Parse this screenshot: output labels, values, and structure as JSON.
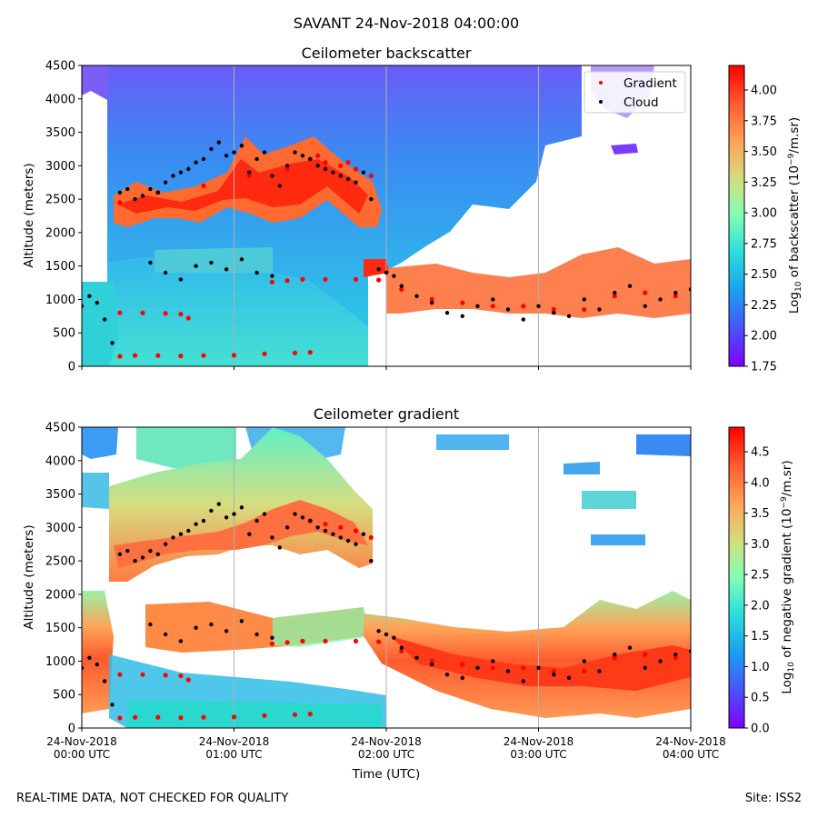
{
  "figure": {
    "title": "SAVANT 24-Nov-2018 04:00:00",
    "footer_left": "REAL-TIME DATA, NOT CHECKED FOR QUALITY",
    "footer_right": "Site: ISS2"
  },
  "colors": {
    "gradient_marker": "#ff0000",
    "cloud_marker": "#000000",
    "gridline": "#b0b0b0",
    "colormap": [
      "#8000ff",
      "#4a52fb",
      "#1a9ff0",
      "#2adcdc",
      "#80ffb4",
      "#d4dc7f",
      "#ffa256",
      "#ff5a2e",
      "#ff0000"
    ]
  },
  "chart_data": [
    {
      "type": "heatmap",
      "title": "Ceilometer backscatter",
      "xlabel": "",
      "ylabel": "Altitude (meters)",
      "xlim": [
        0,
        4
      ],
      "ylim": [
        0,
        4500
      ],
      "yticks": [
        0,
        500,
        1000,
        1500,
        2000,
        2500,
        3000,
        3500,
        4000,
        4500
      ],
      "xticks": [
        0,
        1,
        2,
        3,
        4
      ],
      "grid": "vertical",
      "colorbar": {
        "label": "Log10 of backscatter (10^-9/m.sr)",
        "range": [
          1.75,
          4.2
        ],
        "ticks": [
          "1.75",
          "2.00",
          "2.25",
          "2.50",
          "2.75",
          "3.00",
          "3.25",
          "3.50",
          "3.75",
          "4.00"
        ]
      },
      "legend": {
        "placement": "top-right",
        "entries": [
          {
            "label": "Gradient",
            "color": "#ff0000"
          },
          {
            "label": "Cloud",
            "color": "#000000"
          }
        ]
      },
      "series": [
        {
          "name": "Gradient",
          "x": [
            0.25,
            0.35,
            0.5,
            0.65,
            0.8,
            1.0,
            1.2,
            1.4,
            1.5,
            0.25,
            0.4,
            0.55,
            0.65,
            0.7,
            1.5,
            1.6,
            1.7,
            1.8,
            1.9,
            1.25,
            1.35,
            1.45,
            1.6,
            1.8,
            1.95,
            2.1,
            2.3,
            2.5,
            2.7,
            2.9,
            3.1,
            3.3,
            3.5,
            3.7,
            3.9,
            0.25,
            0.5,
            0.8,
            1.1,
            1.35,
            1.55,
            1.75
          ],
          "y": [
            150,
            160,
            160,
            155,
            160,
            165,
            185,
            200,
            210,
            800,
            800,
            790,
            780,
            720,
            3100,
            3050,
            3000,
            2950,
            2850,
            1260,
            1280,
            1300,
            1300,
            1300,
            1290,
            1150,
            1000,
            950,
            900,
            900,
            850,
            850,
            1050,
            1100,
            1050,
            2450,
            2600,
            2700,
            2850,
            2950,
            3150,
            3050
          ]
        },
        {
          "name": "Cloud",
          "x": [
            0.0,
            0.05,
            0.1,
            0.15,
            0.2,
            0.25,
            0.3,
            0.35,
            0.4,
            0.45,
            0.5,
            0.55,
            0.6,
            0.65,
            0.7,
            0.75,
            0.8,
            0.85,
            0.9,
            0.95,
            1.0,
            1.05,
            1.1,
            1.15,
            1.2,
            1.25,
            1.3,
            1.35,
            1.4,
            1.45,
            1.5,
            1.55,
            1.6,
            1.65,
            1.7,
            1.75,
            1.8,
            1.85,
            1.9,
            1.95,
            2.0,
            2.05,
            2.1,
            2.2,
            2.3,
            2.4,
            2.5,
            2.6,
            2.7,
            2.8,
            2.9,
            3.0,
            3.1,
            3.2,
            3.3,
            3.4,
            3.5,
            3.6,
            3.7,
            3.8,
            3.9,
            4.0,
            0.45,
            0.55,
            0.65,
            0.75,
            0.85,
            0.95,
            1.05,
            1.15,
            1.25
          ],
          "y": [
            900,
            1050,
            950,
            700,
            350,
            2600,
            2650,
            2500,
            2550,
            2650,
            2600,
            2750,
            2850,
            2900,
            2950,
            3050,
            3100,
            3250,
            3350,
            3150,
            3200,
            3300,
            2900,
            3100,
            3200,
            2850,
            2700,
            3000,
            3200,
            3150,
            3100,
            3000,
            2950,
            2900,
            2850,
            2800,
            2750,
            2900,
            2500,
            1450,
            1400,
            1350,
            1200,
            1050,
            950,
            800,
            750,
            900,
            1000,
            850,
            700,
            900,
            800,
            750,
            1000,
            850,
            1100,
            1200,
            900,
            1000,
            1100,
            1150,
            1550,
            1400,
            1300,
            1500,
            1550,
            1450,
            1600,
            1400,
            1350
          ]
        }
      ]
    },
    {
      "type": "heatmap",
      "title": "Ceilometer gradient",
      "xlabel": "Time (UTC)",
      "ylabel": "Altitude (meters)",
      "xlim": [
        0,
        4
      ],
      "ylim": [
        0,
        4500
      ],
      "yticks": [
        0,
        500,
        1000,
        1500,
        2000,
        2500,
        3000,
        3500,
        4000,
        4500
      ],
      "xticks": [
        0,
        1,
        2,
        3,
        4
      ],
      "xticklabels": [
        [
          "24-Nov-2018",
          "00:00 UTC"
        ],
        [
          "24-Nov-2018",
          "01:00 UTC"
        ],
        [
          "24-Nov-2018",
          "02:00 UTC"
        ],
        [
          "24-Nov-2018",
          "03:00 UTC"
        ],
        [
          "24-Nov-2018",
          "04:00 UTC"
        ]
      ],
      "grid": "vertical",
      "colorbar": {
        "label": "Log10 of negative gradient (10^-9/m.sr)",
        "range": [
          0,
          4.9
        ],
        "ticks": [
          "0.0",
          "0.5",
          "1.0",
          "1.5",
          "2.0",
          "2.5",
          "3.0",
          "3.5",
          "4.0",
          "4.5"
        ]
      },
      "series": [
        {
          "name": "Gradient",
          "x": [
            0.25,
            0.35,
            0.5,
            0.65,
            0.8,
            1.0,
            1.2,
            1.4,
            1.5,
            0.25,
            0.4,
            0.55,
            0.65,
            0.7,
            1.5,
            1.6,
            1.7,
            1.8,
            1.9,
            1.25,
            1.35,
            1.45,
            1.6,
            1.8,
            1.95,
            2.1,
            2.3,
            2.5,
            2.7,
            2.9,
            3.1,
            3.3,
            3.5,
            3.7,
            3.9
          ],
          "y": [
            150,
            160,
            160,
            155,
            160,
            165,
            185,
            200,
            210,
            800,
            800,
            790,
            780,
            720,
            3100,
            3050,
            3000,
            2950,
            2850,
            1260,
            1280,
            1300,
            1300,
            1300,
            1290,
            1150,
            1000,
            950,
            900,
            900,
            850,
            850,
            1050,
            1100,
            1050
          ]
        },
        {
          "name": "Cloud",
          "x": [
            0.0,
            0.05,
            0.1,
            0.15,
            0.2,
            0.25,
            0.3,
            0.35,
            0.4,
            0.45,
            0.5,
            0.55,
            0.6,
            0.65,
            0.7,
            0.75,
            0.8,
            0.85,
            0.9,
            0.95,
            1.0,
            1.05,
            1.1,
            1.15,
            1.2,
            1.25,
            1.3,
            1.35,
            1.4,
            1.45,
            1.5,
            1.55,
            1.6,
            1.65,
            1.7,
            1.75,
            1.8,
            1.85,
            1.9,
            1.95,
            2.0,
            2.05,
            2.1,
            2.2,
            2.3,
            2.4,
            2.5,
            2.6,
            2.7,
            2.8,
            2.9,
            3.0,
            3.1,
            3.2,
            3.3,
            3.4,
            3.5,
            3.6,
            3.7,
            3.8,
            3.9,
            4.0,
            0.45,
            0.55,
            0.65,
            0.75,
            0.85,
            0.95,
            1.05,
            1.15,
            1.25
          ],
          "y": [
            900,
            1050,
            950,
            700,
            350,
            2600,
            2650,
            2500,
            2550,
            2650,
            2600,
            2750,
            2850,
            2900,
            2950,
            3050,
            3100,
            3250,
            3350,
            3150,
            3200,
            3300,
            2900,
            3100,
            3200,
            2850,
            2700,
            3000,
            3200,
            3150,
            3100,
            3000,
            2950,
            2900,
            2850,
            2800,
            2750,
            2900,
            2500,
            1450,
            1400,
            1350,
            1200,
            1050,
            950,
            800,
            750,
            900,
            1000,
            850,
            700,
            900,
            800,
            750,
            1000,
            850,
            1100,
            1200,
            900,
            1000,
            1100,
            1150,
            1550,
            1400,
            1300,
            1500,
            1550,
            1450,
            1600,
            1400,
            1350
          ]
        }
      ]
    }
  ]
}
